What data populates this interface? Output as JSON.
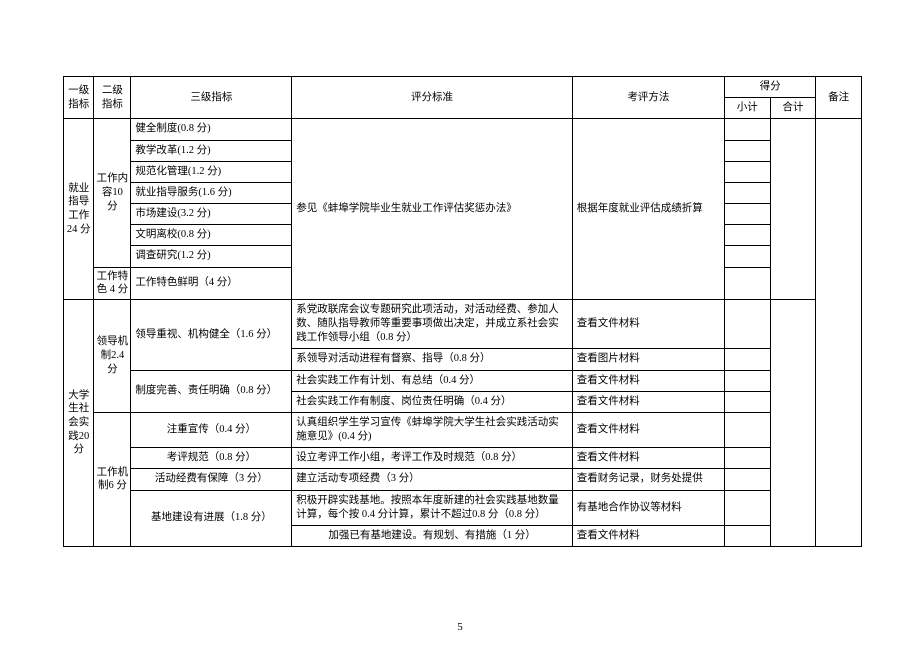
{
  "header": {
    "c1": "一级指标",
    "c2": "二级指标",
    "c3": "三级指标",
    "c4": "评分标准",
    "c5": "考评方法",
    "score": "得分",
    "sub": "小计",
    "total": "合计",
    "note": "备注"
  },
  "sec1": {
    "l1": "就业指导工作24 分",
    "l2a": "工作内容10 分",
    "l2b": "工作特色 4 分",
    "rows": [
      "健全制度(0.8 分)",
      "教学改革(1.2 分)",
      "规范化管理(1.2 分)",
      "就业指导服务(1.6 分)",
      "市场建设(3.2 分)",
      "文明离校(0.8 分)",
      "调查研究(1.2 分)"
    ],
    "row_b": "工作特色鲜明（4 分）",
    "criteria": "参见《蚌埠学院毕业生就业工作评估奖惩办法》",
    "method": "根据年度就业评估成绩折算"
  },
  "sec2": {
    "l1": "大学生社会实践20 分",
    "l2a": "领导机制2.4 分",
    "l2b": "工作机制6 分",
    "a": {
      "r1c3": "领导重视、机构健全（1.6 分）",
      "r1c4": "系党政联席会议专题研究此项活动，对活动经费、参加人数、随队指导教师等重要事项做出决定，并成立系社会实践工作领导小组（0.8 分）",
      "r1c5": "查看文件材料",
      "r2c4": "系领导对活动进程有督察、指导（0.8 分）",
      "r2c5": "查看图片材料",
      "r3c3": "制度完善、责任明确（0.8 分）",
      "r3c4": "社会实践工作有计划、有总结（0.4 分）",
      "r3c5": "查看文件材料",
      "r4c4": "社会实践工作有制度、岗位责任明确（0.4 分）",
      "r4c5": "查看文件材料"
    },
    "b": {
      "r1c3": "注重宣传（0.4 分）",
      "r1c4": "认真组织学生学习宣传《蚌埠学院大学生社会实践活动实施意见》(0.4 分)",
      "r1c5": "查看文件材料",
      "r2c3": "考评规范（0.8 分）",
      "r2c4": "设立考评工作小组，考评工作及时规范（0.8 分）",
      "r2c5": "查看文件材料",
      "r3c3": "活动经费有保障（3 分）",
      "r3c4": "建立活动专项经费（3 分）",
      "r3c5": "查看财务记录，财务处提供",
      "r4c3": "基地建设有进展（1.8 分）",
      "r4c4": "积极开辟实践基地。按照本年度新建的社会实践基地数量计算，每个按 0.4 分计算，累计不超过0.8 分（0.8 分）",
      "r4c5": "有基地合作协议等材料",
      "r5c4": "加强已有基地建设。有规划、有措施（1 分）",
      "r5c5": "查看文件材料"
    }
  },
  "page_num": "5"
}
